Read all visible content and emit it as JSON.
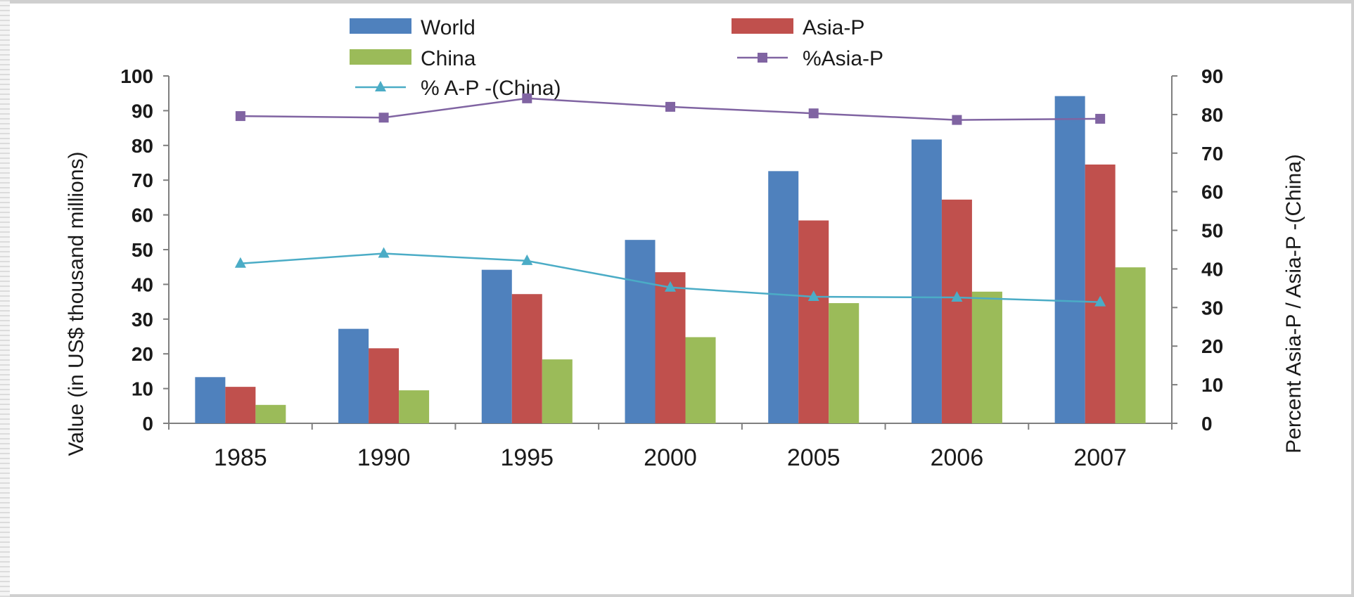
{
  "chart_data": {
    "type": "bar",
    "categories": [
      "1985",
      "1990",
      "1995",
      "2000",
      "2005",
      "2006",
      "2007"
    ],
    "series": [
      {
        "name": "World",
        "kind": "bar",
        "axis": "left",
        "color": "#4f81bd",
        "values": [
          13.3,
          27.2,
          44.2,
          52.8,
          72.6,
          81.7,
          94.2
        ]
      },
      {
        "name": "Asia-P",
        "kind": "bar",
        "axis": "left",
        "color": "#c0504d",
        "values": [
          10.5,
          21.6,
          37.2,
          43.5,
          58.4,
          64.4,
          74.5
        ]
      },
      {
        "name": "China",
        "kind": "bar",
        "axis": "left",
        "color": "#9bbb59",
        "values": [
          5.3,
          9.5,
          18.4,
          24.8,
          34.6,
          37.9,
          44.9
        ]
      },
      {
        "name": "%Asia-P",
        "kind": "line",
        "axis": "right",
        "color": "#8064a2",
        "marker": "square",
        "values": [
          79.6,
          79.2,
          84.2,
          82.0,
          80.3,
          78.6,
          78.9
        ]
      },
      {
        "name": "% A-P -(China)",
        "kind": "line",
        "axis": "right",
        "color": "#4bacc6",
        "marker": "triangle",
        "values": [
          41.4,
          44.0,
          42.1,
          35.2,
          32.8,
          32.6,
          31.4
        ]
      }
    ],
    "ylabel": "Value (in US$ thousand millions)",
    "y2label": "Percent Asia-P / Asia-P -(China)",
    "ylim": [
      0,
      100
    ],
    "y2lim": [
      0,
      90
    ],
    "yticks": [
      "0",
      "10",
      "20",
      "30",
      "40",
      "50",
      "60",
      "70",
      "80",
      "90",
      "100"
    ],
    "y2ticks": [
      "0",
      "10",
      "20",
      "30",
      "40",
      "50",
      "60",
      "70",
      "80",
      "90"
    ],
    "legend_position": "top",
    "grid": false
  }
}
